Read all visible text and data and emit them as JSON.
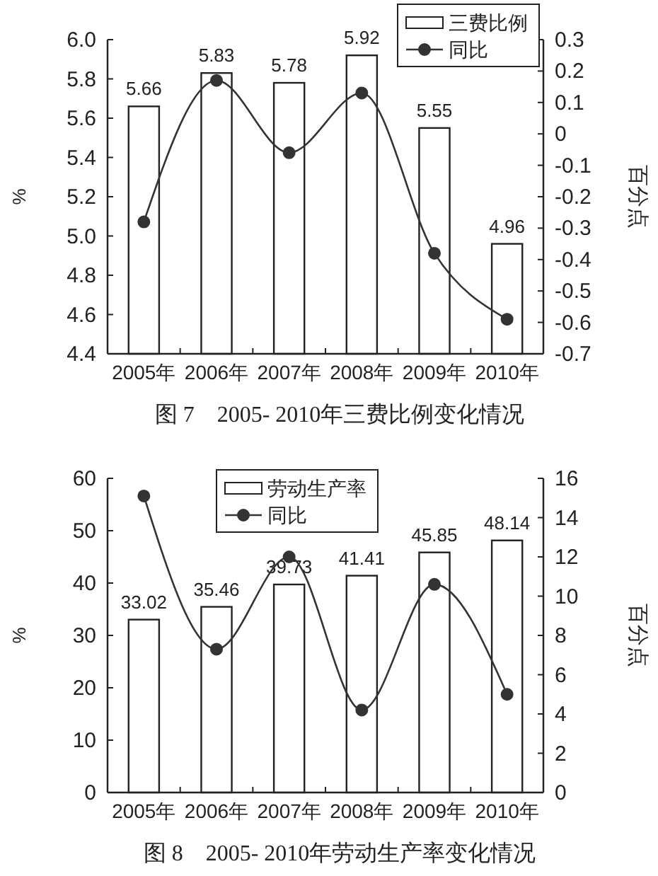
{
  "chart_data": [
    {
      "type": "bar",
      "title": "图 7　2005- 2010年三费比例变化情况",
      "categories": [
        "2005年",
        "2006年",
        "2007年",
        "2008年",
        "2009年",
        "2010年"
      ],
      "series": [
        {
          "name": "三费比例",
          "type": "bar",
          "color": "#ffffff",
          "values": [
            5.66,
            5.83,
            5.78,
            5.92,
            5.55,
            4.96
          ],
          "value_labels": [
            "5.66",
            "5.83",
            "5.78",
            "5.92",
            "5.55",
            "4.96"
          ]
        },
        {
          "name": "同比",
          "type": "line",
          "axis": "y2",
          "color": "#333333",
          "values": [
            -0.28,
            0.17,
            -0.06,
            0.13,
            -0.38,
            -0.59
          ]
        }
      ],
      "ylabel": "%",
      "y2label": "百分点",
      "ylim": [
        4.4,
        6.0
      ],
      "yticks": [
        4.4,
        4.6,
        4.8,
        {
          "value": 5,
          "label": "5.0"
        },
        5.2,
        5.4,
        5.6,
        5.8,
        {
          "value": 6,
          "label": "6.0"
        }
      ],
      "y2lim": [
        -0.7,
        0.3
      ],
      "y2ticks": [
        -0.7,
        -0.6,
        -0.5,
        -0.4,
        -0.3,
        -0.2,
        -0.1,
        0,
        0.1,
        0.2,
        0.3
      ],
      "legend": "top right",
      "marker": "circle",
      "grid": false
    },
    {
      "type": "bar",
      "title": "图 8　2005- 2010年劳动生产率变化情况",
      "categories": [
        "2005年",
        "2006年",
        "2007年",
        "2008年",
        "2009年",
        "2010年"
      ],
      "series": [
        {
          "name": "劳动生产率",
          "type": "bar",
          "color": "#ffffff",
          "values": [
            33.02,
            35.46,
            39.73,
            41.41,
            45.85,
            48.14
          ],
          "value_labels": [
            "33.02",
            "35.46",
            "39.73",
            "41.41",
            "45.85",
            "48.14"
          ]
        },
        {
          "name": "同比",
          "type": "line",
          "axis": "y2",
          "color": "#333333",
          "values": [
            15.1,
            7.3,
            12,
            4.2,
            10.6,
            5.0
          ]
        }
      ],
      "ylabel": "%",
      "y2label": "百分点",
      "ylim": [
        0,
        60
      ],
      "yticks": [
        0,
        10,
        20,
        30,
        40,
        50,
        60
      ],
      "y2lim": [
        0,
        16
      ],
      "y2ticks": [
        0,
        2,
        4,
        6,
        8,
        10,
        12,
        14,
        16
      ],
      "legend": "top",
      "marker": "circle",
      "grid": false
    }
  ]
}
